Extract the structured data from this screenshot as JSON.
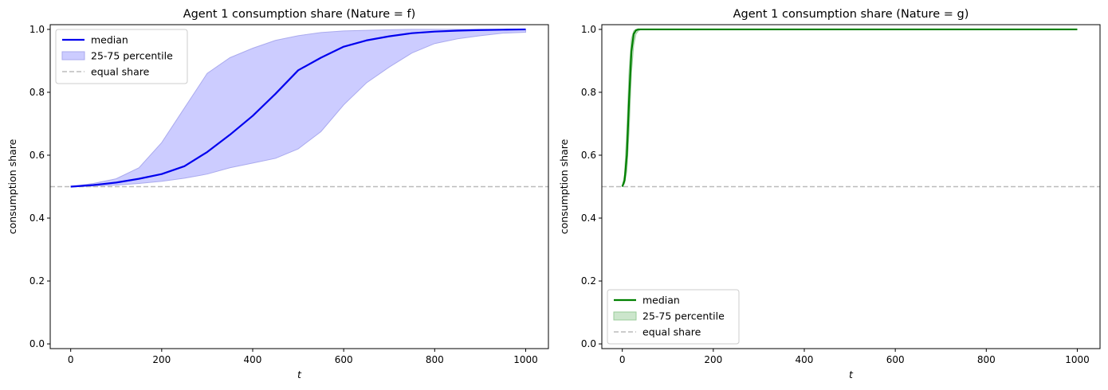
{
  "chart_data": [
    {
      "type": "line",
      "title": "Agent 1 consumption share (Nature = f)",
      "xlabel": "t",
      "ylabel": "consumption share",
      "xlim": [
        -45,
        1050
      ],
      "ylim": [
        -0.015,
        1.015
      ],
      "xticks": [
        0,
        200,
        400,
        600,
        800,
        1000
      ],
      "yticks": [
        0.0,
        0.2,
        0.4,
        0.6,
        0.8,
        1.0
      ],
      "legend_position": "top-left",
      "colors": {
        "median": "#0000ee",
        "band_fill": "#ccccff",
        "band_edge": "#aaaaee",
        "equal": "#bbbbbb"
      },
      "legend": [
        "median",
        "25-75 percentile",
        "equal share"
      ],
      "equal_share": 0.5,
      "x": [
        0,
        50,
        100,
        150,
        200,
        250,
        300,
        350,
        400,
        450,
        500,
        550,
        600,
        650,
        700,
        750,
        800,
        850,
        900,
        950,
        1000
      ],
      "series": [
        {
          "name": "median",
          "values": [
            0.5,
            0.505,
            0.513,
            0.525,
            0.54,
            0.565,
            0.61,
            0.665,
            0.725,
            0.795,
            0.87,
            0.91,
            0.945,
            0.965,
            0.978,
            0.988,
            0.993,
            0.996,
            0.998,
            0.999,
            1.0
          ]
        },
        {
          "name": "25th percentile",
          "values": [
            0.5,
            0.502,
            0.505,
            0.51,
            0.517,
            0.527,
            0.54,
            0.56,
            0.575,
            0.59,
            0.62,
            0.675,
            0.76,
            0.83,
            0.88,
            0.925,
            0.955,
            0.97,
            0.98,
            0.988,
            0.991
          ]
        },
        {
          "name": "75th percentile",
          "values": [
            0.5,
            0.51,
            0.525,
            0.56,
            0.64,
            0.75,
            0.86,
            0.91,
            0.94,
            0.965,
            0.98,
            0.99,
            0.995,
            0.997,
            0.999,
            1.0,
            1.0,
            1.0,
            1.0,
            1.0,
            1.0
          ]
        }
      ]
    },
    {
      "type": "line",
      "title": "Agent 1 consumption share (Nature = g)",
      "xlabel": "t",
      "ylabel": "consumption share",
      "xlim": [
        -45,
        1050
      ],
      "ylim": [
        -0.015,
        1.015
      ],
      "xticks": [
        0,
        200,
        400,
        600,
        800,
        1000
      ],
      "yticks": [
        0.0,
        0.2,
        0.4,
        0.6,
        0.8,
        1.0
      ],
      "legend_position": "bottom-left",
      "colors": {
        "median": "#008000",
        "band_fill": "#cce6cc",
        "band_edge": "#99cc99",
        "equal": "#bbbbbb"
      },
      "legend": [
        "median",
        "25-75 percentile",
        "equal share"
      ],
      "equal_share": 0.5,
      "x": [
        0,
        5,
        10,
        15,
        20,
        25,
        30,
        35,
        40,
        50,
        100,
        200,
        400,
        600,
        800,
        1000
      ],
      "series": [
        {
          "name": "median",
          "values": [
            0.5,
            0.52,
            0.6,
            0.78,
            0.93,
            0.985,
            0.997,
            1.0,
            1.0,
            1.0,
            1.0,
            1.0,
            1.0,
            1.0,
            1.0,
            1.0
          ]
        },
        {
          "name": "25th percentile",
          "values": [
            0.5,
            0.51,
            0.55,
            0.68,
            0.86,
            0.95,
            0.985,
            0.995,
            0.999,
            1.0,
            1.0,
            1.0,
            1.0,
            1.0,
            1.0,
            1.0
          ]
        },
        {
          "name": "75th percentile",
          "values": [
            0.5,
            0.54,
            0.68,
            0.87,
            0.97,
            0.995,
            1.0,
            1.0,
            1.0,
            1.0,
            1.0,
            1.0,
            1.0,
            1.0,
            1.0,
            1.0
          ]
        }
      ]
    }
  ]
}
